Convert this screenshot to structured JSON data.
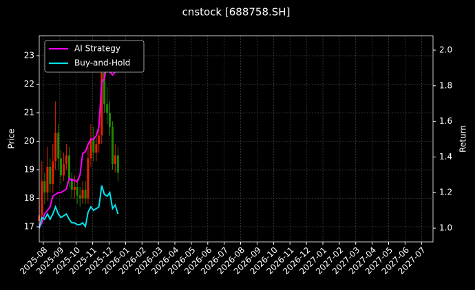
{
  "chart_data": {
    "type": "candlestick",
    "title": "cnstock [688758.SH]",
    "ylabel": "Price",
    "y2label": "Return",
    "x": [
      -0.25,
      -0.09,
      0.08,
      0.25,
      0.41,
      0.58,
      0.74,
      0.91,
      1.07,
      1.24,
      1.4,
      1.57,
      1.73,
      1.9,
      2.06,
      2.23,
      2.39,
      2.56,
      2.72,
      2.89,
      3.05,
      3.22,
      3.38,
      3.55,
      3.71,
      3.88,
      4.04,
      4.21,
      4.37,
      4.54
    ],
    "open": [
      17.2,
      17.4,
      18.6,
      18.2,
      19.1,
      18.5,
      19.3,
      20.3,
      19.4,
      18.8,
      19.2,
      19.5,
      18.7,
      18.3,
      18.4,
      18.1,
      18.0,
      18.3,
      18.0,
      19.4,
      20.1,
      19.6,
      19.9,
      20.2,
      22.4,
      21.3,
      21.0,
      20.5,
      19.2,
      19.5
    ],
    "high": [
      17.9,
      19.3,
      18.9,
      19.8,
      19.4,
      19.9,
      21.4,
      20.6,
      19.7,
      19.6,
      19.9,
      19.8,
      18.9,
      18.8,
      18.7,
      18.4,
      18.6,
      18.6,
      19.8,
      20.6,
      20.5,
      20.3,
      20.8,
      23.2,
      22.9,
      21.9,
      21.4,
      20.7,
      19.9,
      19.8
    ],
    "low": [
      16.9,
      17.1,
      17.8,
      17.9,
      18.2,
      18.2,
      19.0,
      19.0,
      18.5,
      18.6,
      19.0,
      18.4,
      18.0,
      18.0,
      17.8,
      17.7,
      17.8,
      17.8,
      17.8,
      19.1,
      19.3,
      19.3,
      19.6,
      19.9,
      21.0,
      20.6,
      20.2,
      19.0,
      18.9,
      18.6
    ],
    "close": [
      17.4,
      18.6,
      18.2,
      19.1,
      18.5,
      19.3,
      20.3,
      19.4,
      18.8,
      19.2,
      19.5,
      18.7,
      18.3,
      18.4,
      18.1,
      18.0,
      18.3,
      18.0,
      19.4,
      20.1,
      19.6,
      19.9,
      20.2,
      22.4,
      21.3,
      21.0,
      20.5,
      19.2,
      19.5,
      18.9
    ],
    "up_color": "#e62200",
    "down_color": "#1f8a00",
    "series": [
      {
        "name": "AI Strategy",
        "color": "#ff00ff",
        "axis": "y2",
        "values": [
          1.0,
          1.03,
          1.08,
          1.1,
          1.12,
          1.18,
          1.19,
          1.2,
          1.2,
          1.21,
          1.22,
          1.28,
          1.27,
          1.27,
          1.26,
          1.3,
          1.42,
          1.43,
          1.47,
          1.5,
          1.5,
          1.52,
          1.57,
          1.82,
          1.84,
          1.92,
          1.88,
          1.86,
          1.88,
          1.88
        ]
      },
      {
        "name": "Buy-and-Hold",
        "color": "#00e5ee",
        "axis": "y2",
        "values": [
          1.0,
          1.06,
          1.05,
          1.08,
          1.05,
          1.08,
          1.12,
          1.08,
          1.06,
          1.07,
          1.08,
          1.05,
          1.03,
          1.03,
          1.02,
          1.02,
          1.03,
          1.01,
          1.09,
          1.12,
          1.1,
          1.11,
          1.12,
          1.24,
          1.19,
          1.18,
          1.2,
          1.11,
          1.13,
          1.08
        ]
      }
    ],
    "xlim": [
      -0.25,
      23.7
    ],
    "xticks": [
      {
        "value": 0,
        "label": "2025-08"
      },
      {
        "value": 1,
        "label": "2025-09"
      },
      {
        "value": 2,
        "label": "2025-10"
      },
      {
        "value": 3,
        "label": "2025-11"
      },
      {
        "value": 4,
        "label": "2025-12"
      },
      {
        "value": 5,
        "label": "2026-01"
      },
      {
        "value": 6,
        "label": "2026-02"
      },
      {
        "value": 7,
        "label": "2026-03"
      },
      {
        "value": 8,
        "label": "2026-04"
      },
      {
        "value": 9,
        "label": "2026-05"
      },
      {
        "value": 10,
        "label": "2026-06"
      },
      {
        "value": 11,
        "label": "2026-07"
      },
      {
        "value": 12,
        "label": "2026-08"
      },
      {
        "value": 13,
        "label": "2026-09"
      },
      {
        "value": 14,
        "label": "2026-10"
      },
      {
        "value": 15,
        "label": "2026-11"
      },
      {
        "value": 16,
        "label": "2026-12"
      },
      {
        "value": 17,
        "label": "2027-01"
      },
      {
        "value": 18,
        "label": "2027-02"
      },
      {
        "value": 19,
        "label": "2027-03"
      },
      {
        "value": 20,
        "label": "2027-04"
      },
      {
        "value": 21,
        "label": "2027-05"
      },
      {
        "value": 22,
        "label": "2027-06"
      },
      {
        "value": 23,
        "label": "2027-07"
      }
    ],
    "ylim": [
      16.47,
      23.7
    ],
    "yticks": [
      17,
      18,
      19,
      20,
      21,
      22,
      23
    ],
    "y2lim": [
      0.923,
      2.081
    ],
    "y2ticks": [
      {
        "value": 1,
        "label": "1.0"
      },
      1.2,
      1.4,
      1.6,
      1.8,
      {
        "value": 2,
        "label": "2.0"
      }
    ],
    "grid": true,
    "legend": "upper left"
  }
}
